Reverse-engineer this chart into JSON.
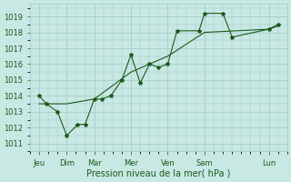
{
  "xlabel": "Pression niveau de la mer( hPa )",
  "bg_color": "#c8e8e4",
  "grid_color": "#a0c8c4",
  "line_color": "#1a5c1a",
  "text_color": "#1a5c1a",
  "ylim": [
    1010.5,
    1019.8
  ],
  "yticks": [
    1011,
    1012,
    1013,
    1014,
    1015,
    1016,
    1017,
    1018,
    1019
  ],
  "xlim": [
    0,
    14
  ],
  "day_tick_positions": [
    0.5,
    2.0,
    3.5,
    5.5,
    7.5,
    9.5,
    13.0
  ],
  "day_tick_labels": [
    "Jeu",
    "Dim",
    "Mar",
    "Mer",
    "Ven",
    "Sam",
    "Lun"
  ],
  "line1_x": [
    0.5,
    0.9,
    1.5,
    2.0,
    2.6,
    3.0,
    3.5,
    3.9,
    4.4,
    5.0,
    5.5,
    6.0,
    6.5,
    7.0,
    7.5,
    8.0,
    9.2,
    9.5,
    10.5,
    11.0,
    13.0,
    13.5
  ],
  "line1_y": [
    1014.0,
    1013.5,
    1013.0,
    1011.5,
    1012.2,
    1012.2,
    1013.8,
    1013.8,
    1014.0,
    1015.0,
    1016.6,
    1014.8,
    1016.0,
    1015.8,
    1016.0,
    1018.1,
    1018.1,
    1019.2,
    1019.2,
    1017.7,
    1018.2,
    1018.5
  ],
  "line2_x": [
    0.5,
    2.0,
    3.5,
    5.5,
    7.5,
    9.5,
    13.0,
    13.5
  ],
  "line2_y": [
    1013.5,
    1013.5,
    1013.8,
    1015.5,
    1016.5,
    1018.0,
    1018.2,
    1018.4
  ]
}
